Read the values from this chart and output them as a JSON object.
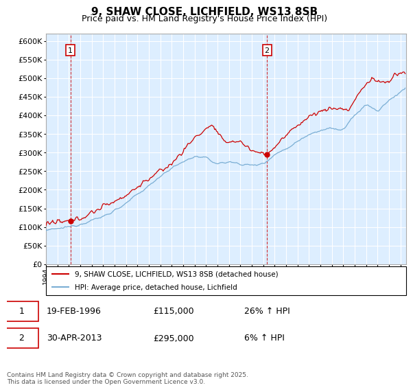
{
  "title": "9, SHAW CLOSE, LICHFIELD, WS13 8SB",
  "subtitle": "Price paid vs. HM Land Registry's House Price Index (HPI)",
  "ylim": [
    0,
    620000
  ],
  "year_start": 1994,
  "year_end": 2025,
  "sale1_date": "19-FEB-1996",
  "sale1_price": 115000,
  "sale1_hpi": "26% ↑ HPI",
  "sale1_label": "1",
  "sale1_year": 1996.13,
  "sale2_date": "30-APR-2013",
  "sale2_label": "2",
  "sale2_price": 295000,
  "sale2_hpi": "6% ↑ HPI",
  "sale2_year": 2013.33,
  "red_color": "#cc0000",
  "blue_color": "#7aaed4",
  "chart_bg": "#ddeeff",
  "grid_color": "#ffffff",
  "background_color": "#ffffff",
  "legend_label_red": "9, SHAW CLOSE, LICHFIELD, WS13 8SB (detached house)",
  "legend_label_blue": "HPI: Average price, detached house, Lichfield",
  "footnote": "Contains HM Land Registry data © Crown copyright and database right 2025.\nThis data is licensed under the Open Government Licence v3.0.",
  "title_fontsize": 11,
  "subtitle_fontsize": 9,
  "tick_fontsize": 8
}
